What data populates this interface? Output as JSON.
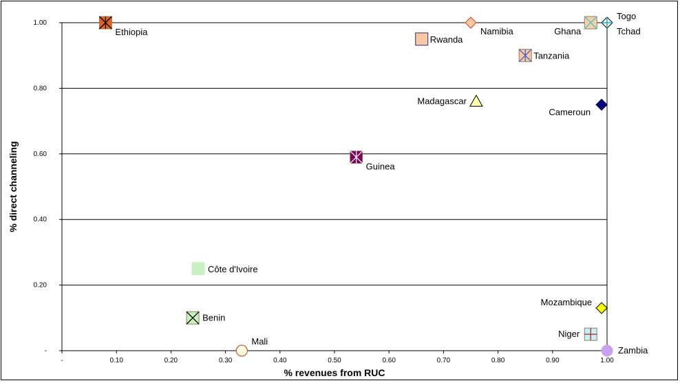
{
  "chart_data": {
    "type": "scatter",
    "title": "",
    "xlabel": "% revenues from RUC",
    "ylabel": "% direct channeling",
    "xlim": [
      0,
      1
    ],
    "ylim": [
      0,
      1
    ],
    "x_ticks": [
      {
        "value": 0.0,
        "label": "-"
      },
      {
        "value": 0.1,
        "label": "0.10"
      },
      {
        "value": 0.2,
        "label": "0.20"
      },
      {
        "value": 0.3,
        "label": "0.30"
      },
      {
        "value": 0.4,
        "label": "0.40"
      },
      {
        "value": 0.5,
        "label": "0.50"
      },
      {
        "value": 0.6,
        "label": "0.60"
      },
      {
        "value": 0.7,
        "label": "0.70"
      },
      {
        "value": 0.8,
        "label": "0.80"
      },
      {
        "value": 0.9,
        "label": "0.90"
      },
      {
        "value": 1.0,
        "label": "1.00"
      }
    ],
    "y_ticks": [
      {
        "value": 0.0,
        "label": "-"
      },
      {
        "value": 0.2,
        "label": "0.20"
      },
      {
        "value": 0.4,
        "label": "0.40"
      },
      {
        "value": 0.6,
        "label": "0.60"
      },
      {
        "value": 0.8,
        "label": "0.80"
      },
      {
        "value": 1.0,
        "label": "1.00"
      }
    ],
    "grid": "horizontal",
    "legend": "none",
    "points": [
      {
        "name": "Ethiopia",
        "x": 0.08,
        "y": 1.0,
        "marker": "square-asterisk",
        "fill": "#E8631A",
        "stroke": "#000000"
      },
      {
        "name": "Namibia",
        "x": 0.75,
        "y": 1.0,
        "marker": "diamond",
        "fill": "#F8C8A0",
        "stroke": "#D0402A"
      },
      {
        "name": "Ghana",
        "x": 0.97,
        "y": 1.0,
        "marker": "square-x",
        "fill": "#F8D0A8",
        "stroke": "#40C8C8"
      },
      {
        "name": "Togo",
        "x": 1.0,
        "y": 1.0,
        "marker": "diamond",
        "fill": "#ffffff",
        "stroke": "#000000"
      },
      {
        "name": "Tchad",
        "x": 1.0,
        "y": 1.0,
        "marker": "plus",
        "fill": "none",
        "stroke": "#00AACC"
      },
      {
        "name": "Rwanda",
        "x": 0.66,
        "y": 0.95,
        "marker": "square",
        "fill": "#F8C8A0",
        "stroke": "#2A2A8A"
      },
      {
        "name": "Tanzania",
        "x": 0.85,
        "y": 0.9,
        "marker": "square-asterisk",
        "fill": "#F8C8A0",
        "stroke": "#4060D0"
      },
      {
        "name": "Madagascar",
        "x": 0.76,
        "y": 0.76,
        "marker": "triangle",
        "fill": "#FFFFA8",
        "stroke": "#000000"
      },
      {
        "name": "Cameroun",
        "x": 0.99,
        "y": 0.75,
        "marker": "diamond",
        "fill": "#000080",
        "stroke": "#000040"
      },
      {
        "name": "Guinea",
        "x": 0.54,
        "y": 0.59,
        "marker": "square-asterisk",
        "fill": "#800060",
        "stroke": "#ffffff"
      },
      {
        "name": "Côte d'Ivoire",
        "x": 0.25,
        "y": 0.25,
        "marker": "square",
        "fill": "#C8F0C0",
        "stroke": "#C8F0C0"
      },
      {
        "name": "Benin",
        "x": 0.24,
        "y": 0.1,
        "marker": "square-x",
        "fill": "#C8F0C0",
        "stroke": "#000000"
      },
      {
        "name": "Mali",
        "x": 0.33,
        "y": 0.0,
        "marker": "circle",
        "fill": "#FFFFE0",
        "stroke": "#C04020"
      },
      {
        "name": "Mozambique",
        "x": 0.99,
        "y": 0.13,
        "marker": "diamond",
        "fill": "#FFFF00",
        "stroke": "#000000"
      },
      {
        "name": "Niger",
        "x": 0.97,
        "y": 0.05,
        "marker": "square-plus",
        "fill": "#C0F0F8",
        "stroke": "#C02020"
      },
      {
        "name": "Zambia",
        "x": 1.0,
        "y": 0.0,
        "marker": "circle",
        "fill": "#C8A0F0",
        "stroke": "#C8A0F0"
      }
    ]
  }
}
